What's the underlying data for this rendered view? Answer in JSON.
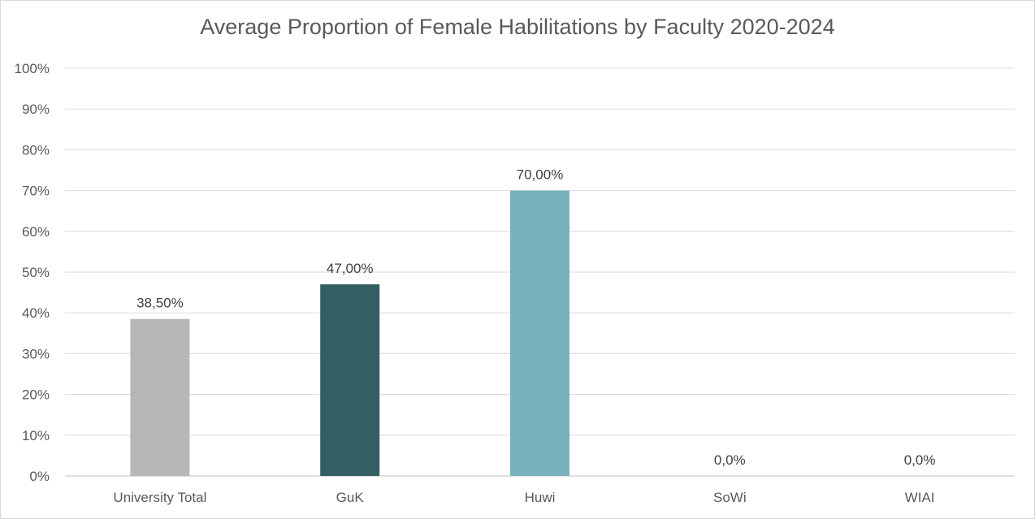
{
  "chart_data": {
    "type": "bar",
    "title": "Average Proportion of Female Habilitations by Faculty 2020-2024",
    "categories": [
      "University Total",
      "GuK",
      "Huwi",
      "SoWi",
      "WIAI"
    ],
    "values": [
      38.5,
      47.0,
      70.0,
      0.0,
      0.0
    ],
    "data_labels": [
      "38,50%",
      "47,00%",
      "70,00%",
      "0,0%",
      "0,0%"
    ],
    "bar_colors": [
      "#b7b7b5",
      "#335f63",
      "#79b2bd",
      "#79b2bd",
      "#79b2bd"
    ],
    "ylim": [
      0,
      100
    ],
    "yticks": [
      "0%",
      "10%",
      "20%",
      "30%",
      "40%",
      "50%",
      "60%",
      "70%",
      "80%",
      "90%",
      "100%"
    ],
    "xlabel": "",
    "ylabel": "",
    "grid": true,
    "legend": "none"
  }
}
